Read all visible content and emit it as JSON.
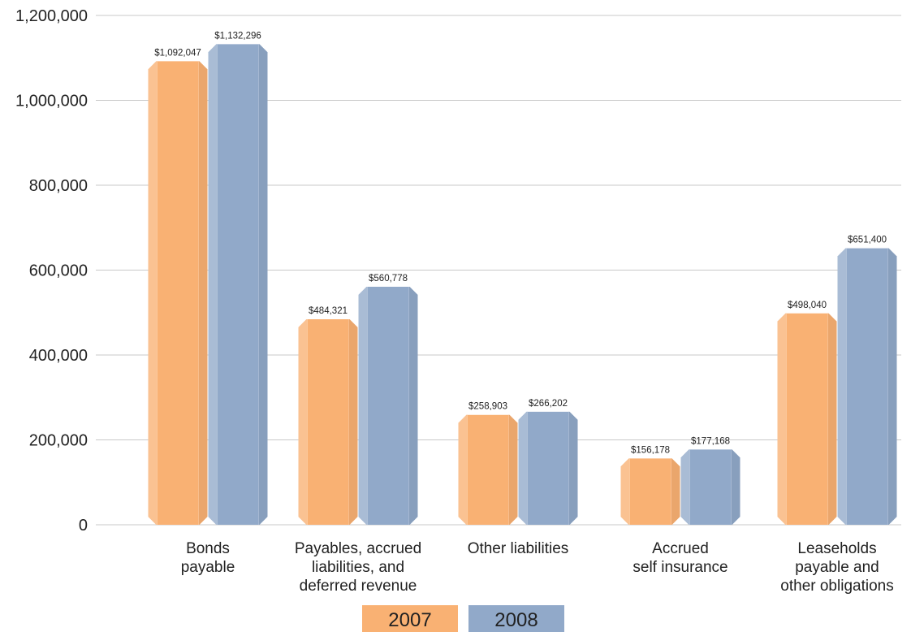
{
  "chart_data": {
    "type": "bar",
    "categories": [
      [
        "Bonds",
        "payable"
      ],
      [
        "Payables, accrued",
        "liabilities, and",
        "deferred revenue"
      ],
      [
        "Other liabilities"
      ],
      [
        "Accrued",
        "self insurance"
      ],
      [
        "Leaseholds",
        "payable and",
        "other obligations"
      ]
    ],
    "series": [
      {
        "name": "2007",
        "color": "#f9b173",
        "values": [
          1092047,
          484321,
          258903,
          156178,
          498040
        ],
        "labels": [
          "$1,092,047",
          "$484,321",
          "$258,903",
          "$156,178",
          "$498,040"
        ]
      },
      {
        "name": "2008",
        "color": "#91a9c9",
        "values": [
          1132296,
          560778,
          266202,
          177168,
          651400
        ],
        "labels": [
          "$1,132,296",
          "$560,778",
          "$266,202",
          "$177,168",
          "$651,400"
        ]
      }
    ],
    "ylim": [
      0,
      1200000
    ],
    "yticks": [
      0,
      200000,
      400000,
      600000,
      800000,
      1000000,
      1200000
    ],
    "ytick_labels": [
      "0",
      "200,000",
      "400,000",
      "600,000",
      "800,000",
      "1,000,000",
      "1,200,000"
    ],
    "grid": true,
    "legend_position": "bottom-center",
    "title": "",
    "xlabel": "",
    "ylabel": ""
  }
}
